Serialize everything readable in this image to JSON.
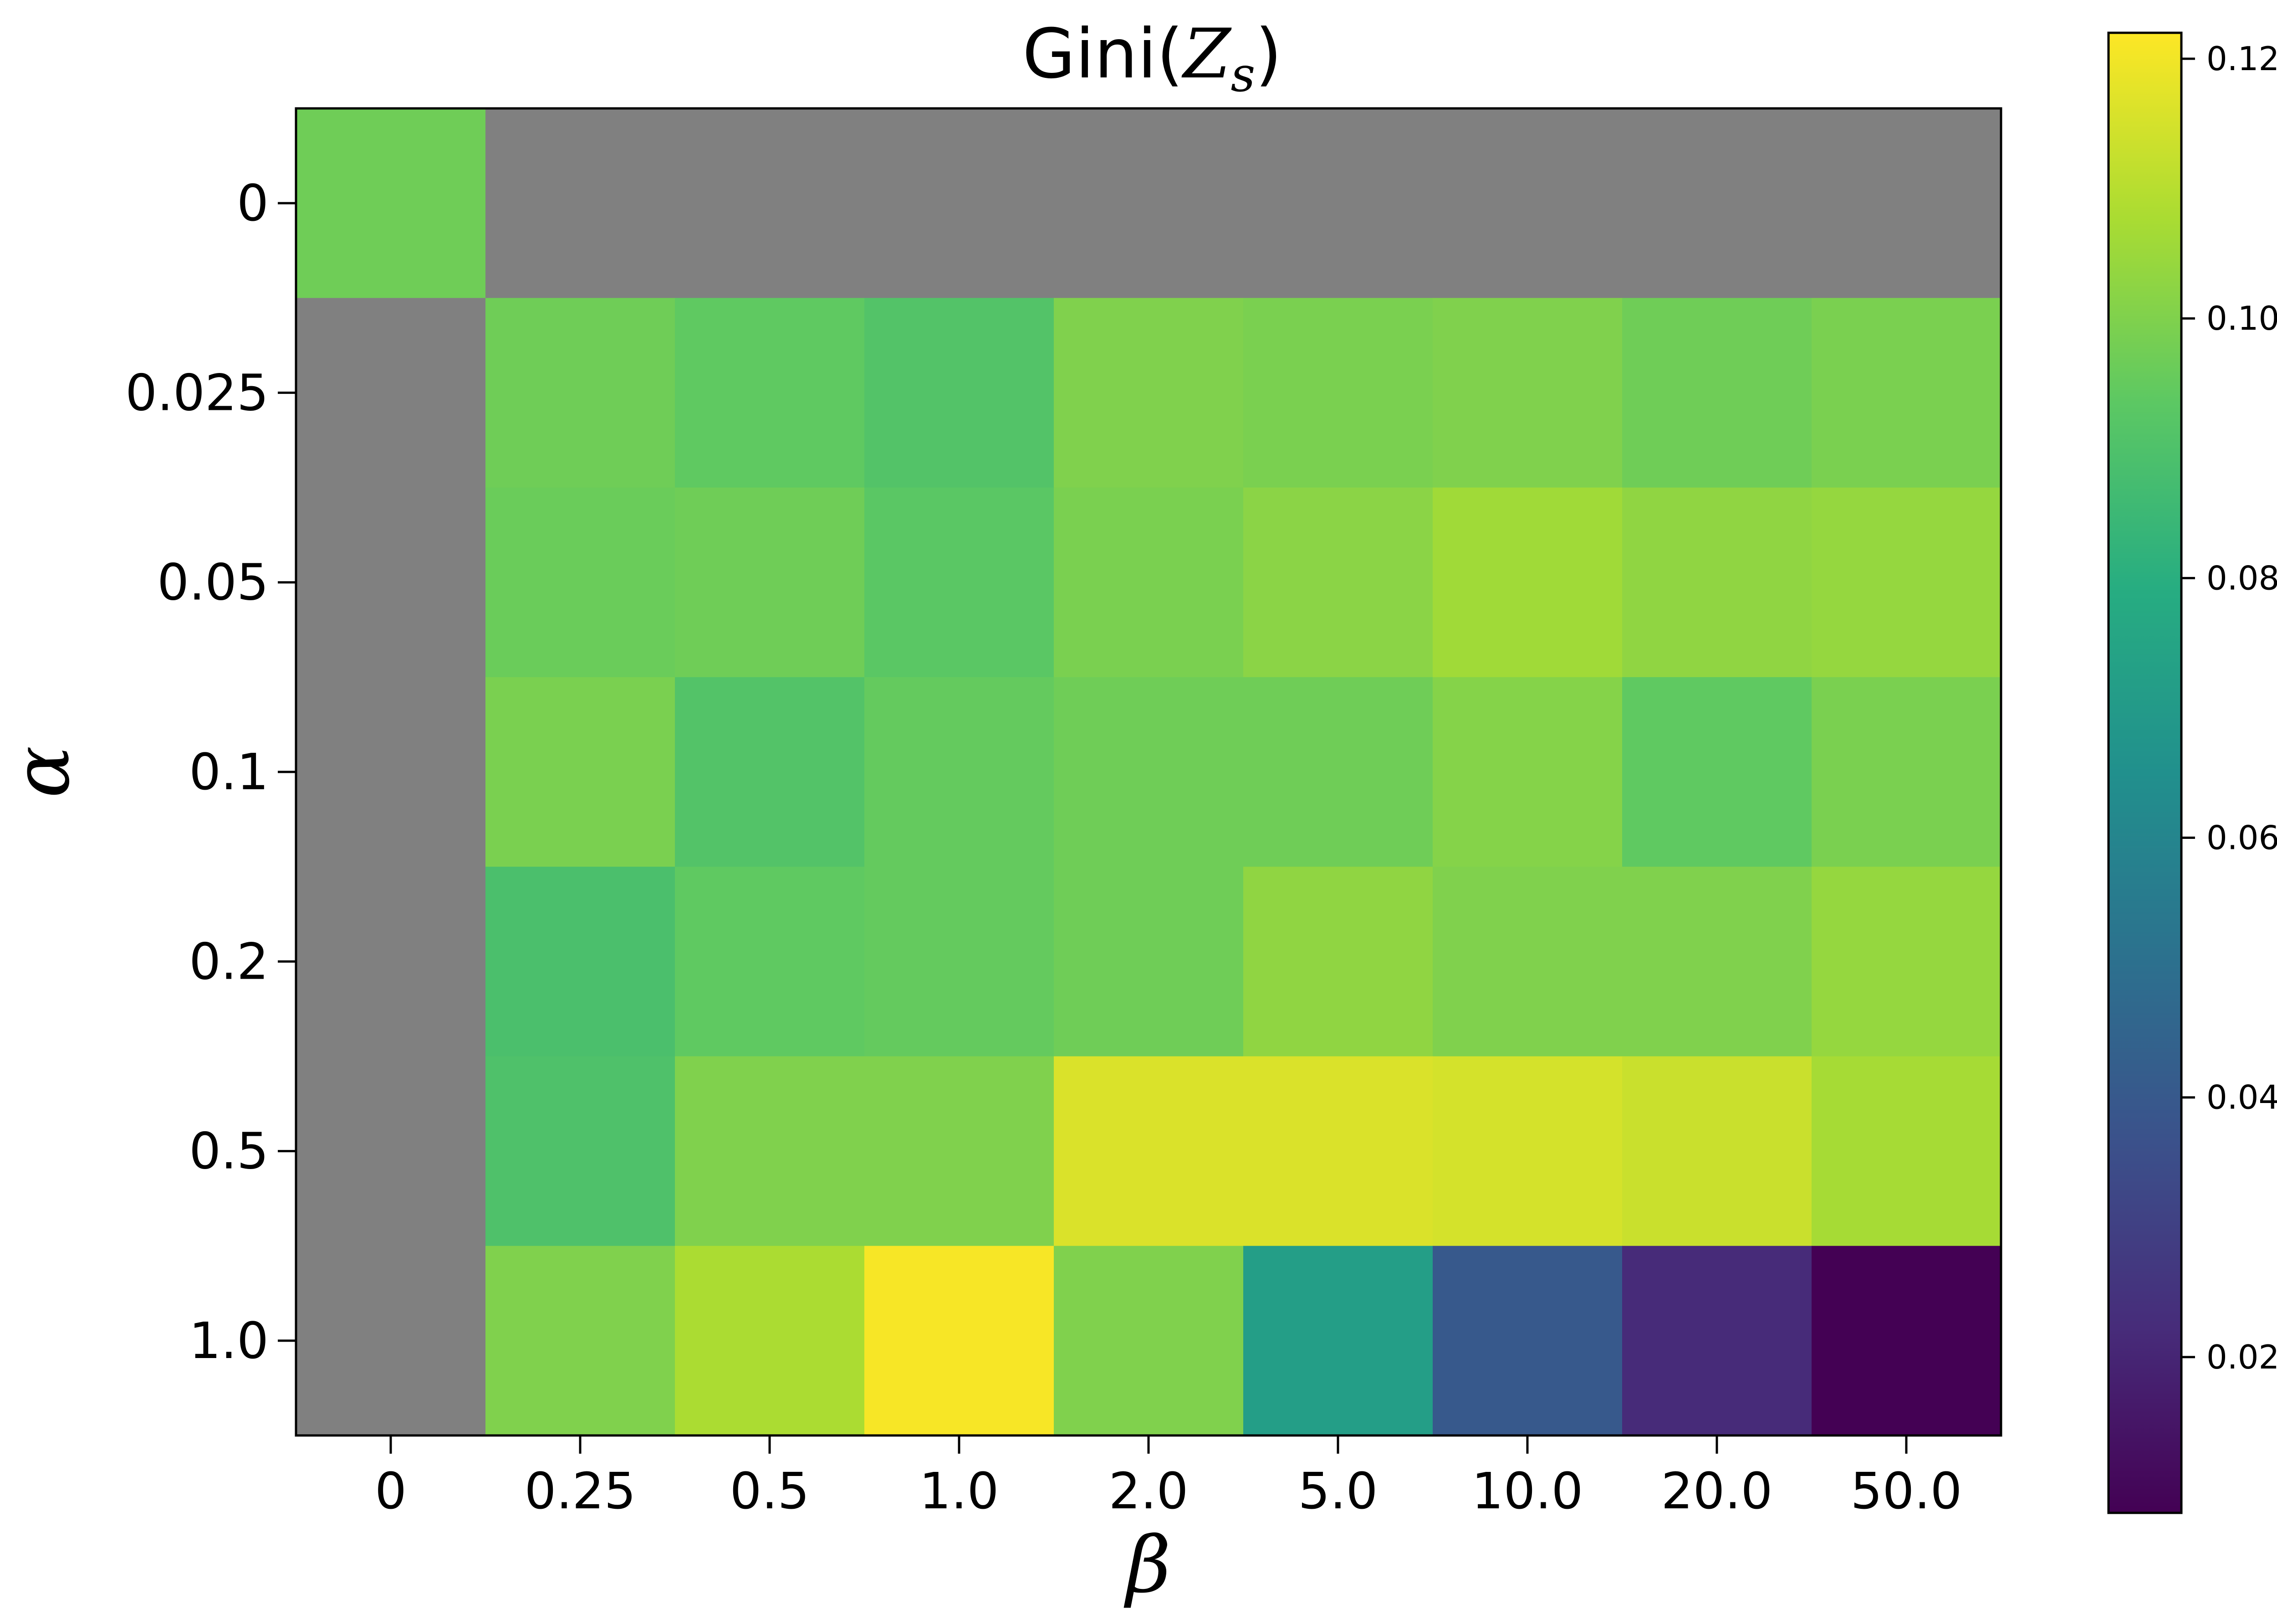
{
  "chart_data": {
    "type": "heatmap",
    "title": "Gini(",
    "title_math": "Z",
    "title_math_sub": "s",
    "title_close": ")",
    "xlabel": "β",
    "ylabel": "α",
    "x_categories": [
      "0",
      "0.25",
      "0.5",
      "1.0",
      "2.0",
      "5.0",
      "10.0",
      "20.0",
      "50.0"
    ],
    "y_categories": [
      "0",
      "0.025",
      "0.05",
      "0.1",
      "0.2",
      "0.5",
      "1.0"
    ],
    "values": [
      [
        0.097,
        null,
        null,
        null,
        null,
        null,
        null,
        null,
        null
      ],
      [
        null,
        0.097,
        0.094,
        0.091,
        0.1,
        0.099,
        0.1,
        0.097,
        0.099
      ],
      [
        null,
        0.096,
        0.097,
        0.093,
        0.099,
        0.102,
        0.106,
        0.103,
        0.104
      ],
      [
        null,
        0.099,
        0.091,
        0.095,
        0.097,
        0.097,
        0.101,
        0.094,
        0.099
      ],
      [
        null,
        0.089,
        0.094,
        0.095,
        0.097,
        0.103,
        0.1,
        0.1,
        0.104
      ],
      [
        null,
        0.09,
        0.1,
        0.1,
        0.116,
        0.116,
        0.115,
        0.113,
        0.107
      ],
      [
        null,
        0.1,
        0.108,
        0.121,
        0.1,
        0.072,
        0.04,
        0.022,
        0.008
      ]
    ],
    "missing_color": "#808080",
    "colormap": "viridis",
    "colorbar": {
      "vmin": 0.008,
      "vmax": 0.122,
      "ticks": [
        0.02,
        0.04,
        0.06,
        0.08,
        0.1,
        0.12
      ],
      "tick_labels": [
        "0.02",
        "0.04",
        "0.06",
        "0.08",
        "0.10",
        "0.12"
      ]
    }
  }
}
